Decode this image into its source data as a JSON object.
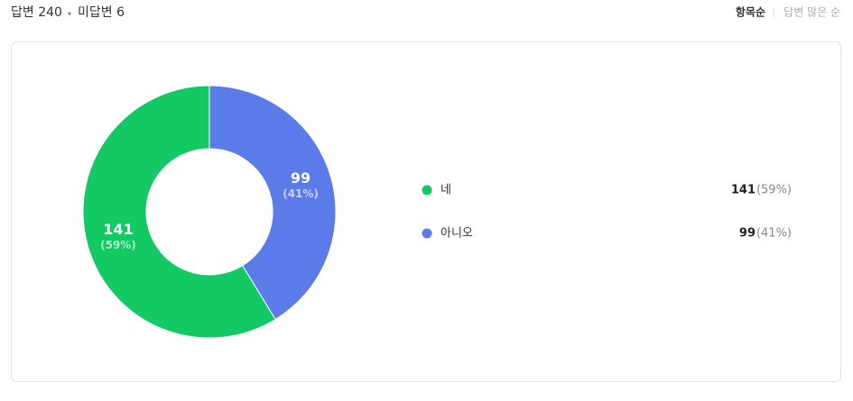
{
  "header": {
    "answered": "답변 240",
    "unanswered": "미답변 6",
    "sort_options": [
      "항목순",
      "답변 많은 순"
    ]
  },
  "chart_data": {
    "type": "donut",
    "categories": [
      "네",
      "아니오"
    ],
    "values": [
      141,
      99
    ],
    "percentages": [
      59,
      41
    ],
    "percentage_labels": [
      "(59%)",
      "(41%)"
    ],
    "colors": [
      "#12c964",
      "#5b7be9"
    ]
  }
}
